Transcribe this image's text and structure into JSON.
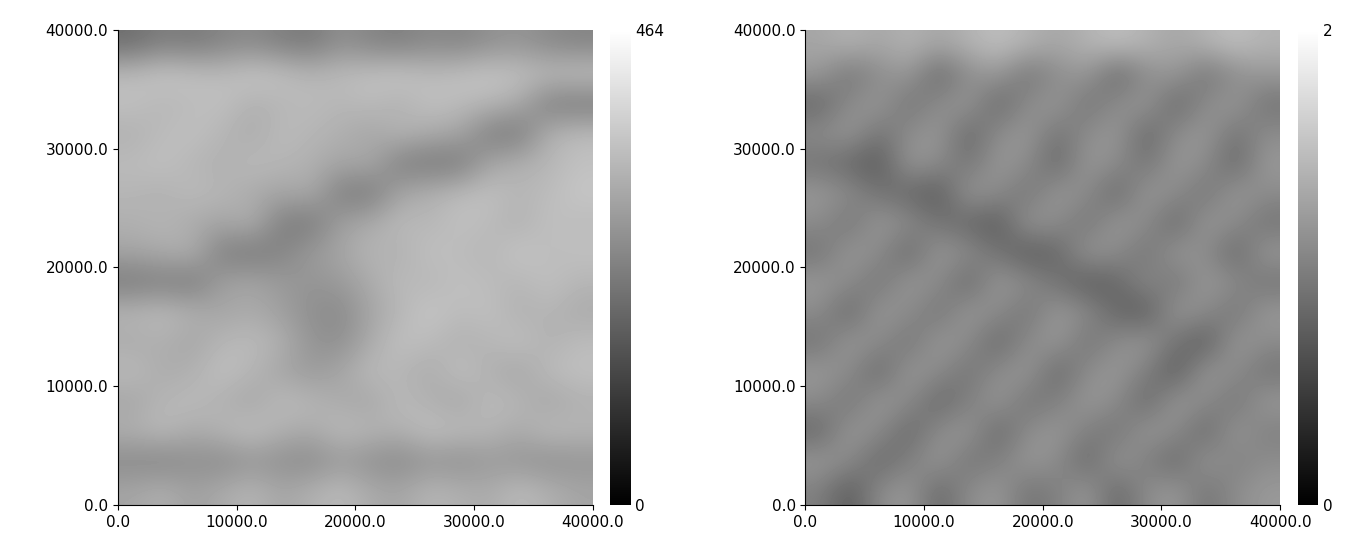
{
  "chart_data": [
    {
      "type": "heatmap",
      "color": "gray",
      "xlim": [
        0,
        40000
      ],
      "ylim": [
        0,
        40000
      ],
      "xticks": [
        {
          "value": 0,
          "label": "0.0"
        },
        {
          "value": 10000,
          "label": "10000.0"
        },
        {
          "value": 20000,
          "label": "20000.0"
        },
        {
          "value": 30000,
          "label": "30000.0"
        },
        {
          "value": 40000,
          "label": "40000.0"
        }
      ],
      "yticks": [
        {
          "value": 0,
          "label": "0.0"
        },
        {
          "value": 10000,
          "label": "10000.0"
        },
        {
          "value": 20000,
          "label": "20000.0"
        },
        {
          "value": 30000,
          "label": "30000.0"
        },
        {
          "value": 40000,
          "label": "40000.0"
        }
      ],
      "colorbar": {
        "range": [
          0,
          464
        ],
        "ticks": [
          0,
          464
        ]
      },
      "cells": [
        [
          300,
          320,
          290,
          310,
          330,
          300,
          320,
          340,
          310,
          300,
          330,
          320,
          310,
          340,
          320,
          300
        ],
        [
          250,
          240,
          260,
          250,
          270,
          260,
          250,
          280,
          260,
          250,
          270,
          260,
          280,
          270,
          260,
          270
        ],
        [
          320,
          340,
          310,
          330,
          350,
          320,
          310,
          340,
          330,
          320,
          350,
          340,
          330,
          310,
          340,
          330
        ],
        [
          300,
          330,
          340,
          320,
          300,
          340,
          330,
          310,
          300,
          340,
          320,
          300,
          340,
          330,
          300,
          320
        ],
        [
          340,
          310,
          320,
          350,
          330,
          300,
          280,
          300,
          340,
          330,
          310,
          350,
          320,
          300,
          340,
          350
        ],
        [
          310,
          320,
          300,
          330,
          340,
          320,
          270,
          260,
          310,
          350,
          340,
          320,
          330,
          350,
          320,
          340
        ],
        [
          330,
          340,
          320,
          300,
          310,
          290,
          260,
          250,
          300,
          330,
          360,
          340,
          350,
          320,
          330,
          310
        ],
        [
          220,
          230,
          220,
          290,
          300,
          280,
          270,
          280,
          310,
          340,
          330,
          350,
          340,
          330,
          350,
          330
        ],
        [
          300,
          310,
          320,
          230,
          220,
          240,
          280,
          300,
          330,
          320,
          350,
          340,
          330,
          360,
          340,
          350
        ],
        [
          320,
          330,
          310,
          300,
          320,
          230,
          220,
          290,
          310,
          340,
          330,
          350,
          340,
          320,
          350,
          340
        ],
        [
          330,
          320,
          340,
          330,
          310,
          300,
          310,
          230,
          220,
          300,
          320,
          340,
          350,
          330,
          340,
          360
        ],
        [
          340,
          350,
          330,
          320,
          340,
          330,
          320,
          300,
          310,
          230,
          220,
          220,
          300,
          320,
          330,
          350
        ],
        [
          320,
          340,
          350,
          330,
          310,
          340,
          330,
          320,
          300,
          330,
          310,
          300,
          230,
          220,
          320,
          340
        ],
        [
          350,
          330,
          340,
          350,
          320,
          330,
          340,
          330,
          340,
          320,
          350,
          340,
          330,
          310,
          230,
          220
        ],
        [
          340,
          360,
          350,
          340,
          360,
          350,
          330,
          340,
          350,
          360,
          340,
          350,
          360,
          350,
          340,
          350
        ],
        [
          200,
          230,
          220,
          240,
          250,
          230,
          220,
          260,
          240,
          230,
          250,
          240,
          260,
          270,
          250,
          240
        ]
      ]
    },
    {
      "type": "heatmap",
      "color": "gray",
      "xlim": [
        0,
        40000
      ],
      "ylim": [
        0,
        40000
      ],
      "xticks": [
        {
          "value": 0,
          "label": "0.0"
        },
        {
          "value": 10000,
          "label": "10000.0"
        },
        {
          "value": 20000,
          "label": "20000.0"
        },
        {
          "value": 30000,
          "label": "30000.0"
        },
        {
          "value": 40000,
          "label": "40000.0"
        }
      ],
      "yticks": [
        {
          "value": 0,
          "label": "0.0"
        },
        {
          "value": 10000,
          "label": "10000.0"
        },
        {
          "value": 20000,
          "label": "20000.0"
        },
        {
          "value": 30000,
          "label": "30000.0"
        },
        {
          "value": 40000,
          "label": "40000.0"
        }
      ],
      "colorbar": {
        "range": [
          0,
          2
        ],
        "ticks": [
          0,
          2
        ]
      },
      "cells": [
        [
          1.0,
          0.7,
          1.1,
          1.2,
          0.8,
          1.1,
          1.2,
          0.9,
          1.0,
          1.2,
          0.8,
          1.1,
          1.2,
          0.9,
          1.1,
          1.2
        ],
        [
          1.2,
          1.1,
          0.8,
          1.0,
          1.2,
          0.9,
          1.0,
          1.2,
          1.1,
          0.8,
          1.2,
          1.0,
          0.8,
          1.2,
          1.0,
          1.1
        ],
        [
          0.8,
          1.2,
          1.1,
          0.8,
          1.1,
          1.2,
          0.8,
          1.1,
          1.2,
          1.0,
          0.9,
          1.2,
          1.1,
          0.8,
          1.2,
          1.0
        ],
        [
          1.1,
          0.9,
          1.2,
          1.1,
          0.8,
          1.0,
          1.2,
          0.9,
          1.0,
          1.2,
          1.1,
          0.8,
          1.2,
          1.1,
          0.9,
          1.2
        ],
        [
          1.2,
          1.1,
          0.8,
          1.2,
          1.1,
          0.9,
          1.1,
          1.2,
          0.8,
          1.1,
          1.2,
          1.0,
          0.7,
          1.2,
          1.1,
          0.9
        ],
        [
          0.9,
          1.2,
          1.1,
          0.9,
          1.2,
          1.1,
          0.8,
          1.1,
          1.2,
          0.9,
          1.1,
          1.2,
          0.9,
          0.7,
          1.2,
          1.1
        ],
        [
          1.1,
          0.8,
          1.2,
          1.1,
          0.9,
          1.2,
          1.1,
          0.9,
          1.2,
          1.1,
          0.8,
          0.7,
          1.2,
          1.1,
          0.9,
          1.2
        ],
        [
          1.2,
          1.1,
          0.9,
          1.2,
          1.1,
          0.8,
          1.2,
          1.1,
          0.9,
          0.7,
          0.8,
          1.1,
          0.9,
          1.2,
          1.1,
          0.9
        ],
        [
          0.9,
          1.2,
          1.1,
          0.8,
          1.2,
          1.1,
          0.9,
          0.7,
          0.8,
          1.2,
          1.1,
          0.9,
          1.2,
          1.1,
          0.8,
          1.2
        ],
        [
          1.1,
          0.9,
          1.2,
          1.1,
          0.9,
          0.8,
          0.7,
          1.2,
          1.1,
          0.9,
          1.2,
          1.1,
          0.8,
          1.2,
          1.1,
          0.9
        ],
        [
          1.2,
          1.1,
          0.9,
          0.8,
          0.7,
          1.2,
          1.1,
          0.9,
          1.2,
          1.1,
          0.8,
          1.2,
          1.1,
          0.9,
          1.2,
          1.1
        ],
        [
          0.9,
          0.8,
          0.7,
          1.2,
          1.1,
          0.9,
          1.2,
          1.1,
          0.8,
          1.2,
          1.1,
          0.9,
          1.2,
          1.1,
          0.8,
          1.2
        ],
        [
          1.1,
          1.2,
          0.9,
          1.1,
          1.2,
          0.8,
          1.1,
          1.2,
          0.9,
          1.1,
          1.2,
          0.8,
          1.1,
          1.2,
          0.9,
          1.1
        ],
        [
          0.8,
          1.1,
          1.2,
          0.9,
          1.1,
          1.2,
          0.8,
          1.1,
          1.2,
          0.9,
          1.1,
          1.2,
          0.8,
          1.1,
          1.2,
          0.9
        ],
        [
          1.2,
          0.9,
          1.1,
          1.2,
          0.8,
          1.1,
          1.2,
          0.9,
          1.1,
          1.2,
          0.8,
          1.1,
          1.2,
          0.9,
          1.1,
          1.2
        ],
        [
          1.3,
          1.4,
          1.3,
          1.4,
          1.3,
          1.4,
          1.5,
          1.4,
          1.3,
          1.4,
          1.5,
          1.4,
          1.3,
          1.4,
          1.5,
          1.4
        ]
      ]
    }
  ]
}
